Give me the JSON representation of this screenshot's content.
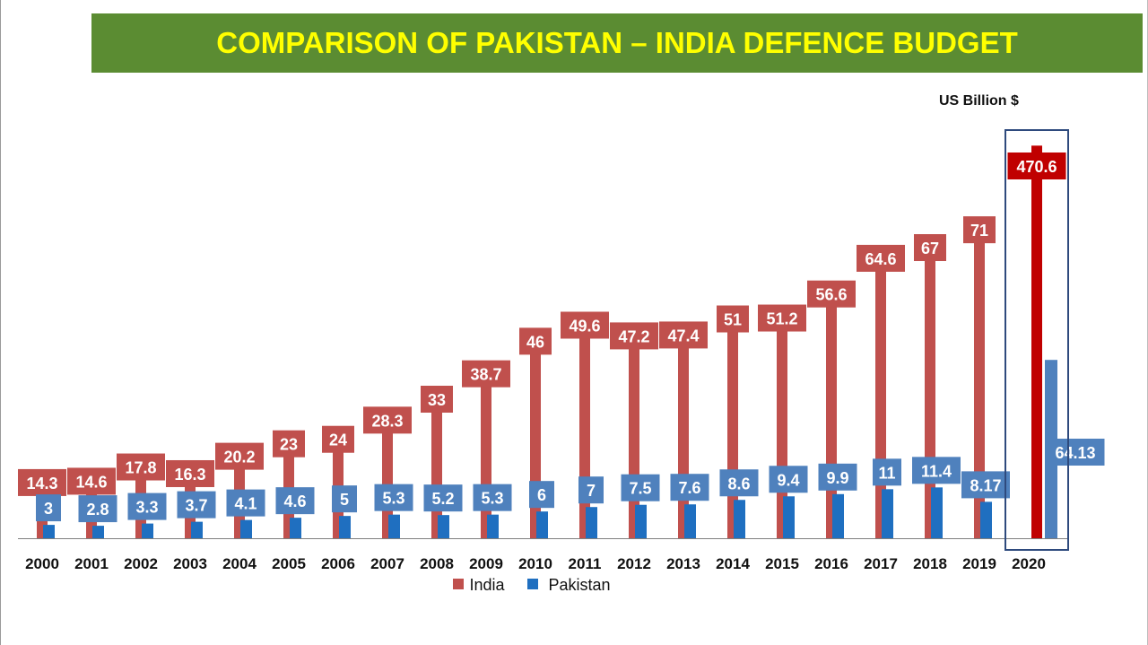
{
  "title": "COMPARISON OF PAKISTAN – INDIA DEFENCE BUDGET",
  "unit_label": "US Billion $",
  "colors": {
    "banner": "#5b8c32",
    "title_text": "#ffff00",
    "india": "#c0504d",
    "india_highlight": "#c00000",
    "pakistan": "#1f6fc0",
    "pakistan_2020": "#4f81bd",
    "pakistan_label": "#4f81bd"
  },
  "chart_data": {
    "type": "bar",
    "title": "COMPARISON OF PAKISTAN – INDIA DEFENCE BUDGET",
    "unit": "US Billion $",
    "xlabel": "",
    "ylabel": "",
    "categories": [
      "2000",
      "2001",
      "2002",
      "2003",
      "2004",
      "2005",
      "2006",
      "2007",
      "2008",
      "2009",
      "2010",
      "2011",
      "2012",
      "2013",
      "2014",
      "2015",
      "2016",
      "2017",
      "2018",
      "2019",
      "2020"
    ],
    "series": [
      {
        "name": "India",
        "values": [
          14.3,
          14.6,
          17.8,
          16.3,
          20.2,
          23,
          24,
          28.3,
          33,
          38.7,
          46,
          49.6,
          47.2,
          47.4,
          51,
          51.2,
          56.6,
          64.6,
          67,
          71,
          470.6
        ],
        "labels": [
          "14.3",
          "14.6",
          "17.8",
          "16.3",
          "20.2",
          "23",
          "24",
          "28.3",
          "33",
          "38.7",
          "46",
          "49.6",
          "47.2",
          "47.4",
          "51",
          "51.2",
          "56.6",
          "64.6",
          "67",
          "71",
          "470.6"
        ]
      },
      {
        "name": "Pakistan",
        "values": [
          3,
          2.8,
          3.3,
          3.7,
          4.1,
          4.6,
          5,
          5.3,
          5.2,
          5.3,
          6,
          7,
          7.5,
          7.6,
          8.6,
          9.4,
          9.9,
          11,
          11.4,
          8.17,
          64.13
        ],
        "labels": [
          "3",
          "2.8",
          "3.3",
          "3.7",
          "4.1",
          "4.6",
          "5",
          "5.3",
          "5.2",
          "5.3",
          "6",
          "7",
          "7.5",
          "7.6",
          "8.6",
          "9.4",
          "9.9",
          "11",
          "11.4",
          "8.17",
          "64.13"
        ]
      }
    ],
    "legend": [
      "India",
      "Pakistan"
    ],
    "legend_position": "bottom",
    "highlighted_category": "2020",
    "grid": false
  }
}
